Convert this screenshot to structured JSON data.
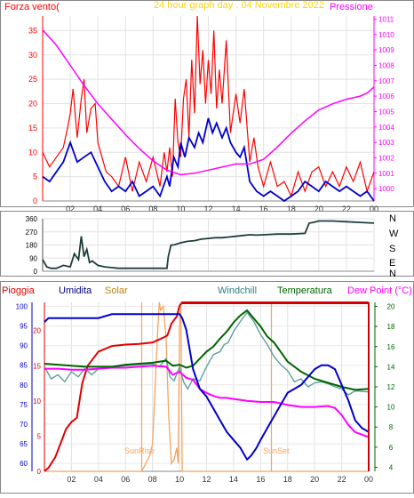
{
  "chart_data": [
    {
      "type": "line",
      "title": "24 hour graph day . 04 Novembre 2022",
      "left_axis_label": "Forza vento(",
      "right_axis_label": "Pressione",
      "x_ticks": [
        "02",
        "04",
        "06",
        "08",
        "10",
        "12",
        "14",
        "16",
        "18",
        "20",
        "22",
        "00"
      ],
      "y_left_ticks": [
        0,
        5,
        10,
        15,
        20,
        25,
        30,
        35
      ],
      "y_left_range": [
        0,
        38
      ],
      "y_right_ticks": [
        1000,
        1001,
        1002,
        1003,
        1004,
        1005,
        1006,
        1007,
        1008,
        1009,
        1010,
        1011
      ],
      "y_right_range": [
        999.2,
        1011.2
      ],
      "x_range_hours": [
        0,
        24
      ],
      "colors": {
        "gust": "#ff0000",
        "speed": "#0000cc",
        "pressure": "#ff00ff",
        "title": "#ffd700",
        "left_label": "#ff0000",
        "right_label": "#ff00ff"
      },
      "series": [
        {
          "key": "gust",
          "x": [
            0,
            0.5,
            1,
            1.5,
            1.8,
            2,
            2.2,
            2.5,
            2.8,
            3,
            3.2,
            3.5,
            3.8,
            4,
            4.3,
            4.6,
            5,
            5.5,
            6,
            6.5,
            7,
            7.5,
            8,
            8.5,
            8.8,
            9,
            9.2,
            9.4,
            9.6,
            9.8,
            10,
            10.2,
            10.4,
            10.6,
            10.8,
            11,
            11.2,
            11.4,
            11.6,
            11.8,
            12,
            12.2,
            12.4,
            12.6,
            12.8,
            13,
            13.3,
            13.6,
            14,
            14.3,
            14.6,
            15,
            15.3,
            15.6,
            16,
            16.5,
            17,
            17.5,
            18,
            18.5,
            19,
            19.5,
            20,
            20.5,
            21,
            21.5,
            22,
            22.5,
            23,
            23.5,
            24
          ],
          "values": [
            10,
            7,
            9,
            11,
            15,
            18,
            23,
            13,
            21,
            25,
            14,
            19,
            20,
            12,
            9,
            6,
            5,
            3,
            9,
            2,
            8,
            4,
            9,
            3,
            10,
            6,
            11,
            5,
            21,
            12,
            9,
            21,
            25,
            13,
            29,
            18,
            38,
            24,
            31,
            20,
            29,
            22,
            35,
            19,
            27,
            20,
            33,
            14,
            22,
            16,
            23,
            8,
            13,
            7,
            3,
            8,
            3,
            4,
            1,
            6,
            2,
            6,
            7,
            3,
            6,
            3,
            7,
            4,
            8,
            2,
            6
          ]
        },
        {
          "key": "speed",
          "x": [
            0,
            0.5,
            1,
            1.5,
            2,
            2.5,
            3,
            3.5,
            4,
            4.5,
            5,
            5.5,
            6,
            6.5,
            7,
            7.5,
            8,
            8.5,
            9,
            9.2,
            9.5,
            9.8,
            10,
            10.3,
            10.6,
            11,
            11.3,
            11.6,
            12,
            12.3,
            12.6,
            13,
            13.3,
            13.6,
            14,
            14.3,
            14.6,
            15,
            15.5,
            16,
            16.5,
            17,
            17.5,
            18,
            18.5,
            19,
            19.5,
            20,
            20.5,
            21,
            21.5,
            22,
            22.5,
            23,
            23.5,
            24
          ],
          "values": [
            5,
            4,
            6,
            8,
            12,
            8,
            9,
            10,
            7,
            4,
            2,
            3,
            2,
            4,
            1,
            2,
            3,
            1,
            5,
            3,
            9,
            7,
            12,
            9,
            13,
            11,
            14,
            12,
            17,
            14,
            16,
            13,
            15,
            12,
            10,
            9,
            11,
            4,
            2,
            1,
            2,
            1,
            0,
            1,
            2,
            4,
            3,
            2,
            4,
            3,
            2,
            3,
            2,
            1,
            2,
            0
          ]
        },
        {
          "key": "pressure",
          "axis": "right",
          "x": [
            0,
            1,
            2,
            3,
            4,
            5,
            6,
            7,
            8,
            9,
            10,
            11,
            12,
            13,
            14,
            15,
            16,
            17,
            18,
            19,
            20,
            21,
            22,
            23,
            23.5,
            24
          ],
          "values": [
            1010.3,
            1009.3,
            1008,
            1006.7,
            1005.5,
            1004.5,
            1003.5,
            1002.6,
            1001.8,
            1001.2,
            1000.9,
            1001,
            1001.2,
            1001.4,
            1001.6,
            1001.6,
            1001.9,
            1002.7,
            1003.6,
            1004.4,
            1005.1,
            1005.5,
            1005.8,
            1006,
            1006.2,
            1006.6
          ]
        }
      ]
    },
    {
      "type": "line",
      "y_ticks": [
        0,
        90,
        180,
        270,
        360
      ],
      "y_range": [
        0,
        360
      ],
      "direction_labels": [
        "N",
        "W",
        "S",
        "E",
        "N"
      ],
      "x_range_hours": [
        0,
        24
      ],
      "colors": {
        "direction": "#1f3d3d"
      },
      "series": [
        {
          "key": "direction",
          "x": [
            0,
            0.3,
            0.6,
            1,
            1.5,
            2,
            2.3,
            2.6,
            2.8,
            3,
            3.2,
            3.4,
            3.6,
            4,
            4.5,
            5,
            5.5,
            6,
            6.5,
            7,
            7.5,
            8,
            8.5,
            9,
            9.1,
            9.3,
            9.5,
            10,
            10.5,
            11,
            11.5,
            12,
            12.5,
            13,
            13.5,
            14,
            14.5,
            15,
            15.5,
            16,
            17,
            18,
            19,
            19.3,
            19.6,
            20,
            21,
            22,
            23,
            24
          ],
          "values": [
            80,
            30,
            20,
            20,
            40,
            30,
            120,
            80,
            240,
            100,
            150,
            60,
            70,
            40,
            30,
            25,
            20,
            20,
            20,
            20,
            20,
            20,
            20,
            20,
            100,
            180,
            180,
            195,
            205,
            210,
            220,
            225,
            230,
            230,
            235,
            240,
            245,
            250,
            248,
            250,
            255,
            255,
            260,
            330,
            335,
            345,
            345,
            340,
            335,
            330
          ]
        }
      ]
    },
    {
      "type": "line",
      "labels": {
        "rain": "Pioggia",
        "humidity": "Umidita",
        "solar": "Solar",
        "windchill": "Windchill",
        "temperature": "Temperatura",
        "dewpoint": "Dew Point (°C)",
        "sunrise": "SunRise",
        "sunset": "SunSet"
      },
      "x_ticks": [
        "02",
        "04",
        "06",
        "08",
        "10",
        "12",
        "14",
        "16",
        "18",
        "20",
        "22",
        "00"
      ],
      "y_humidity_ticks": [
        60,
        65,
        70,
        75,
        80,
        85,
        90,
        95,
        100
      ],
      "y_humidity_range": [
        58,
        101
      ],
      "y_rain_ticks": [
        0,
        5,
        10,
        15,
        20
      ],
      "y_rain_range": [
        0,
        24
      ],
      "y_temp_ticks": [
        4,
        6,
        8,
        10,
        12,
        14,
        16,
        18,
        20
      ],
      "y_temp_range": [
        3.6,
        20.4
      ],
      "x_range_hours": [
        0,
        24
      ],
      "sunrise_hour": 7.2,
      "sunset_hour": 16.8,
      "colors": {
        "rain": "#e00000",
        "humidity": "#0000cc",
        "solar": "#f4a460",
        "windchill": "#5f9ea0",
        "temperature": "#006400",
        "dewpoint": "#ff00ff",
        "humidity_label": "#000080",
        "solar_label": "#b8860b",
        "windchill_label": "#2f8080",
        "temperature_label": "#006400",
        "dewpoint_label": "#ff00ff",
        "rain_label": "#e00000",
        "frame_right": "#cc0000"
      },
      "series": [
        {
          "key": "rain",
          "axis": "rain",
          "x": [
            0,
            0.3,
            0.8,
            1.2,
            1.6,
            2,
            2.4,
            2.8,
            3.2,
            3.6,
            4,
            5,
            6,
            7,
            8,
            8.8,
            9.1,
            9.4,
            9.8,
            10,
            10.2,
            24
          ],
          "values": [
            0,
            0.5,
            2,
            4,
            6,
            7,
            7.6,
            12.5,
            15,
            16,
            17,
            17.8,
            18,
            18.1,
            18.3,
            19,
            19.3,
            21,
            22,
            23.5,
            24,
            24
          ]
        },
        {
          "key": "humidity",
          "axis": "humidity",
          "x": [
            0,
            0.3,
            1,
            2,
            3,
            4,
            5,
            6,
            7,
            8,
            9,
            9.5,
            10,
            10.2,
            10.5,
            11,
            11.5,
            12,
            12.5,
            13,
            13.5,
            14,
            14.5,
            15,
            15.3,
            15.7,
            16,
            16.5,
            17,
            17.5,
            18,
            18.5,
            19,
            19.5,
            20,
            20.5,
            21,
            21.5,
            22,
            22.5,
            23,
            23.5,
            24
          ],
          "values": [
            96,
            97,
            97,
            97,
            97,
            97,
            98,
            98,
            98,
            98,
            98,
            98,
            98,
            97,
            94,
            84,
            79,
            77,
            74,
            71,
            68,
            66,
            64,
            61,
            62,
            64,
            66,
            69,
            72,
            75,
            78,
            79,
            80,
            82,
            84,
            85,
            85,
            84,
            80,
            76,
            71,
            69,
            68
          ]
        },
        {
          "key": "solar",
          "axis": "humidity",
          "x": [
            0,
            7.2,
            7.5,
            7.8,
            8,
            8.2,
            8.4,
            8.5,
            8.6,
            8.8,
            9,
            9.2,
            9.4,
            9.6,
            9.8,
            9.9,
            10,
            10.1,
            10.2,
            24
          ],
          "values": [
            58,
            58,
            60,
            62,
            65,
            80,
            95,
            101,
            99,
            100,
            92,
            72,
            60,
            61,
            64,
            60,
            95,
            100,
            58,
            58
          ]
        },
        {
          "key": "temperature",
          "axis": "temp",
          "x": [
            0,
            1,
            2,
            3,
            4,
            5,
            6,
            7,
            8,
            9,
            9.5,
            10,
            10.5,
            11,
            11.5,
            12,
            12.5,
            13,
            13.5,
            14,
            14.5,
            15,
            15.5,
            16,
            16.5,
            17,
            18,
            19,
            20,
            21,
            22,
            23,
            24
          ],
          "values": [
            14.3,
            14.2,
            14.1,
            14,
            14,
            14,
            14.2,
            14.3,
            14.4,
            14.6,
            14.1,
            14.2,
            13.9,
            14.1,
            14.8,
            15.5,
            16,
            16.8,
            17.5,
            18.4,
            19.1,
            19.6,
            18.8,
            18,
            17,
            16.4,
            14.5,
            13.5,
            12.8,
            12.4,
            12,
            11.7,
            11.8
          ]
        },
        {
          "key": "windchill",
          "axis": "temp",
          "x": [
            0,
            0.5,
            1,
            1.5,
            2,
            2.5,
            3,
            3.5,
            4,
            5,
            6,
            7,
            8,
            8.5,
            9,
            9.3,
            9.6,
            10,
            10.3,
            10.6,
            11,
            11.5,
            12,
            12.5,
            13,
            13.3,
            13.6,
            14,
            14.5,
            15,
            15.5,
            16,
            16.5,
            17,
            17.5,
            18,
            18.5,
            19,
            19.5,
            20,
            20.5,
            21,
            21.5,
            22,
            22.5,
            23,
            24
          ],
          "values": [
            14,
            12.8,
            13.2,
            12.5,
            13.5,
            13,
            13.8,
            13.2,
            13.8,
            14,
            14.1,
            14.2,
            14.3,
            14,
            14.8,
            13,
            12.6,
            14,
            12.5,
            11.8,
            12.8,
            12.6,
            14,
            15.2,
            15.5,
            16.2,
            16.4,
            17.5,
            18.5,
            19.4,
            18.5,
            17.2,
            16.2,
            15,
            14.2,
            13.6,
            12.5,
            12.8,
            12,
            12.4,
            12.5,
            12.3,
            12,
            11.8,
            11.2,
            11.6,
            11.5
          ]
        },
        {
          "key": "dewpoint",
          "axis": "temp",
          "x": [
            0,
            1,
            2,
            3,
            4,
            5,
            6,
            7,
            8,
            9,
            9.5,
            10,
            10.5,
            11,
            11.5,
            12,
            12.5,
            13,
            13.5,
            14,
            15,
            16,
            17,
            18,
            19,
            20,
            21,
            21.5,
            22,
            22.5,
            23,
            24
          ],
          "values": [
            13.8,
            13.8,
            13.7,
            13.7,
            13.8,
            13.9,
            13.9,
            14,
            14.1,
            14,
            13.2,
            13.5,
            12.9,
            12.7,
            11.8,
            11.4,
            11.1,
            10.9,
            10.9,
            10.8,
            10.6,
            10.5,
            10.5,
            10.2,
            10,
            10,
            10.1,
            9.9,
            9.2,
            8.2,
            7.5,
            7
          ]
        }
      ]
    }
  ]
}
